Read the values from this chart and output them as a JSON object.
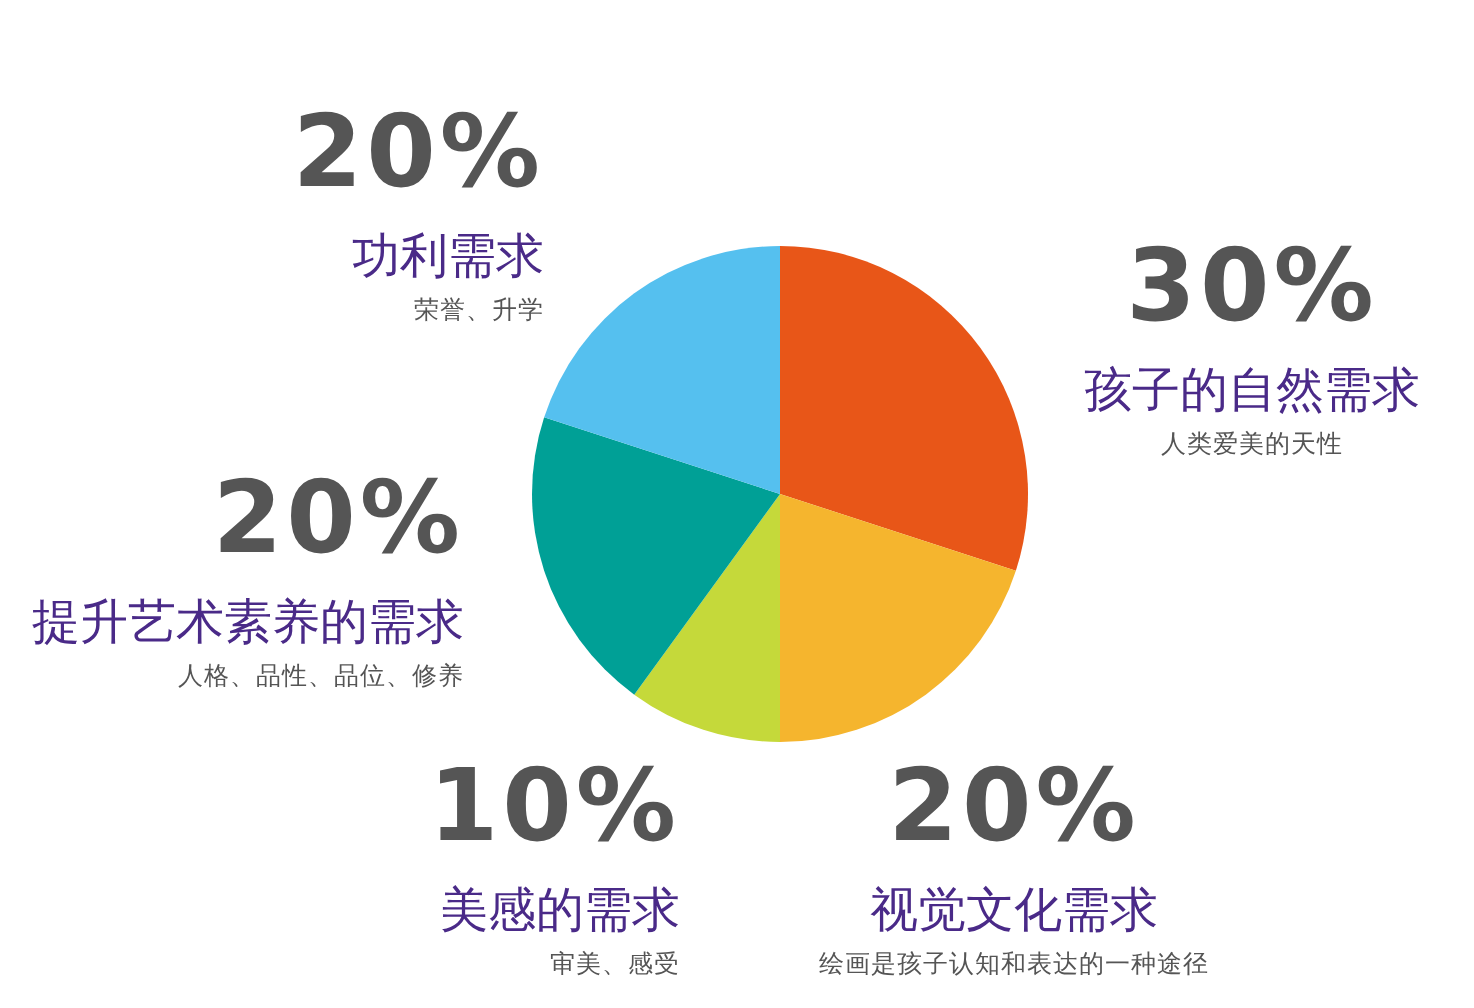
{
  "chart_data": {
    "type": "pie",
    "categories": [
      "孩子的自然需求",
      "视觉文化需求",
      "美感的需求",
      "提升艺术素养的需求",
      "功利需求"
    ],
    "values": [
      30,
      20,
      10,
      20,
      20
    ],
    "value_labels": [
      "30%",
      "20%",
      "10%",
      "20%",
      "20%"
    ],
    "colors": [
      "#e85618",
      "#f5b52e",
      "#c5d93a",
      "#00a096",
      "#55c0ef"
    ],
    "annotations": [
      "人类爱美的天性",
      "绘画是孩子认知和表达的一种途径",
      "审美、感受",
      "人格、品性、品位、修养",
      "荣誉、升学"
    ]
  }
}
